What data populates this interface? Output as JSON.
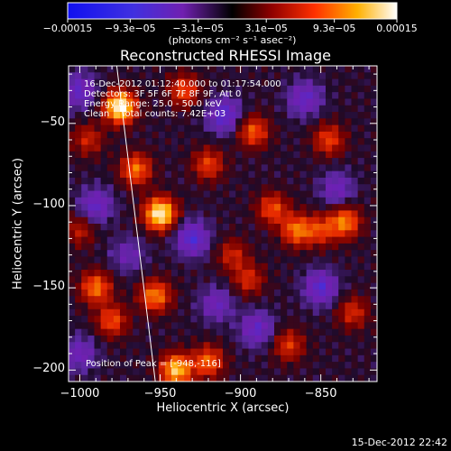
{
  "chart_data": {
    "type": "heatmap",
    "title": "Reconstructed RHESSI Image",
    "xlabel": "Heliocentric X (arcsec)",
    "ylabel": "Heliocentric Y (arcsec)",
    "xlim": [
      -1007,
      -815
    ],
    "ylim": [
      -207,
      -15
    ],
    "x_ticks": [
      -1000,
      -950,
      -900,
      -850
    ],
    "x_tick_labels": [
      "−1000",
      "−950",
      "−900",
      "−850"
    ],
    "y_ticks": [
      -200,
      -150,
      -100,
      -50
    ],
    "y_tick_labels": [
      "−200",
      "−150",
      "−100",
      "−50"
    ],
    "colorbar": {
      "range": [
        -0.00015,
        0.00015
      ],
      "ticks": [
        -0.00015,
        -9.3e-05,
        -3.1e-05,
        3.1e-05,
        9.3e-05,
        0.00015
      ],
      "tick_labels": [
        "−0.00015",
        "−9.3e−05",
        "−3.1e−05",
        "3.1e−05",
        "9.3e−05",
        "0.00015"
      ],
      "unit_label": "(photons cm⁻² s⁻¹ asec⁻²)"
    },
    "info_lines": [
      "16-Dec-2012 01:12:40.000 to 01:17:54.000",
      "Detectors: 3F 5F 6F 7F 8F 9F, Att 0",
      "Energy Range: 25.0 - 50.0 keV",
      "Clean    Total counts: 7.42E+03"
    ],
    "peak_label": "Position of Peak = [-948,-116]",
    "limb_line": [
      [
        -977,
        -15
      ],
      [
        -953,
        -207
      ]
    ],
    "hot_spots": [
      {
        "x": -975,
        "y": -40,
        "value": 0.00015
      },
      {
        "x": -950,
        "y": -105,
        "value": 0.000145
      },
      {
        "x": -935,
        "y": -30,
        "value": 7e-05
      },
      {
        "x": -965,
        "y": -78,
        "value": 8.5e-05
      },
      {
        "x": -920,
        "y": -75,
        "value": 6.5e-05
      },
      {
        "x": -892,
        "y": -55,
        "value": 7.5e-05
      },
      {
        "x": -880,
        "y": -102,
        "value": 7e-05
      },
      {
        "x": -865,
        "y": -115,
        "value": 8.5e-05
      },
      {
        "x": -850,
        "y": -115,
        "value": 6e-05
      },
      {
        "x": -845,
        "y": -60,
        "value": 6.5e-05
      },
      {
        "x": -835,
        "y": -110,
        "value": 9e-05
      },
      {
        "x": -990,
        "y": -150,
        "value": 8.5e-05
      },
      {
        "x": -980,
        "y": -170,
        "value": 7e-05
      },
      {
        "x": -953,
        "y": -155,
        "value": 9e-05
      },
      {
        "x": -940,
        "y": -200,
        "value": 0.00012
      },
      {
        "x": -920,
        "y": -195,
        "value": 8e-05
      },
      {
        "x": -895,
        "y": -145,
        "value": 5.5e-05
      },
      {
        "x": -905,
        "y": -130,
        "value": 5e-05
      },
      {
        "x": -870,
        "y": -185,
        "value": 6e-05
      },
      {
        "x": -830,
        "y": -165,
        "value": 5.5e-05
      },
      {
        "x": -1000,
        "y": -115,
        "value": 4.5e-05
      },
      {
        "x": -995,
        "y": -60,
        "value": 5e-05
      }
    ],
    "cold_spots": [
      {
        "x": -1000,
        "y": -30,
        "value": -6e-05
      },
      {
        "x": -910,
        "y": -45,
        "value": -7e-05
      },
      {
        "x": -860,
        "y": -35,
        "value": -6e-05
      },
      {
        "x": -840,
        "y": -90,
        "value": -5e-05
      },
      {
        "x": -990,
        "y": -100,
        "value": -6e-05
      },
      {
        "x": -930,
        "y": -120,
        "value": -7.5e-05
      },
      {
        "x": -890,
        "y": -175,
        "value": -6e-05
      },
      {
        "x": -915,
        "y": -160,
        "value": -5e-05
      },
      {
        "x": -850,
        "y": -150,
        "value": -7e-05
      },
      {
        "x": -1000,
        "y": -190,
        "value": -5e-05
      },
      {
        "x": -970,
        "y": -130,
        "value": -4e-05
      }
    ]
  },
  "footer_timestamp": "15-Dec-2012 22:42"
}
